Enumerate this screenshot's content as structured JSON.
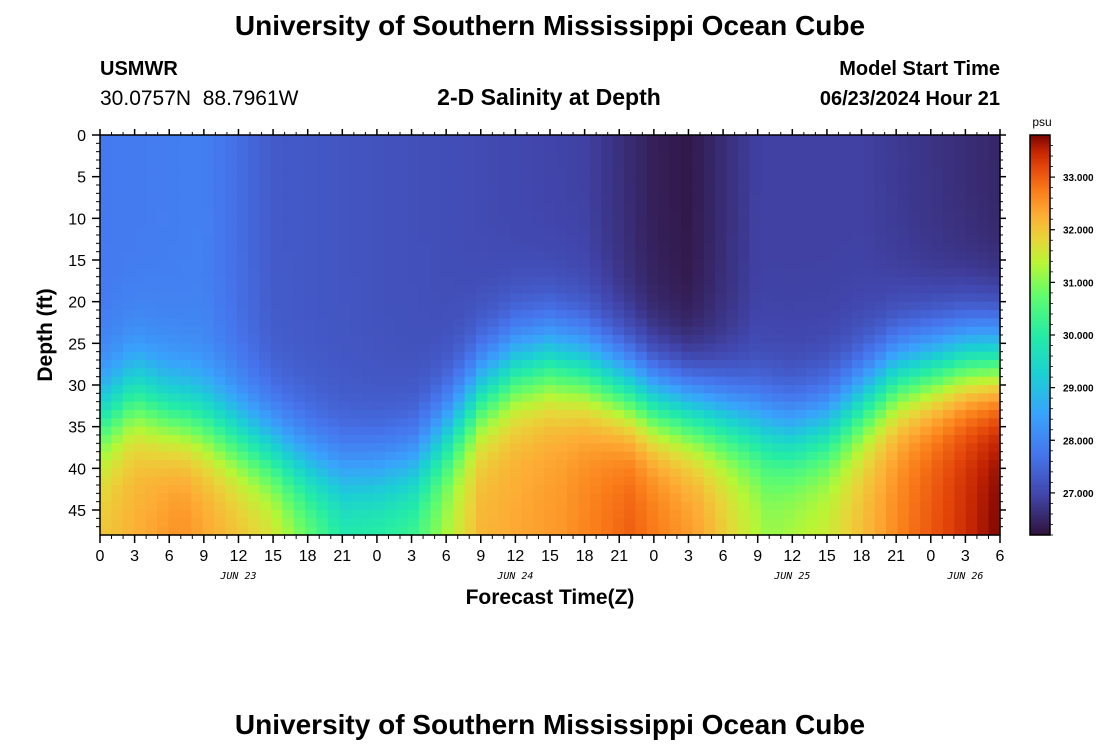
{
  "page": {
    "title": "University of Southern Mississippi Ocean Cube",
    "footer_title": "University of Southern Mississippi Ocean Cube",
    "station": "USMWR",
    "coords": "30.0757N  88.7961W",
    "subtitle": "2-D Salinity at Depth",
    "model_start_label": "Model Start Time",
    "model_start_value": "06/23/2024 Hour 21"
  },
  "chart_data": {
    "type": "heatmap",
    "title": "2-D Salinity at Depth",
    "xlabel": "Forecast Time(Z)",
    "ylabel": "Depth (ft)",
    "xlim": [
      0,
      78
    ],
    "ylim": [
      0,
      48
    ],
    "x_tick_values": [
      0,
      3,
      6,
      9,
      12,
      15,
      18,
      21,
      24,
      27,
      30,
      33,
      36,
      39,
      42,
      45,
      48,
      51,
      54,
      57,
      60,
      63,
      66,
      69,
      72,
      75,
      78
    ],
    "x_tick_labels": [
      "0",
      "3",
      "6",
      "9",
      "12",
      "15",
      "18",
      "21",
      "0",
      "3",
      "6",
      "9",
      "12",
      "15",
      "18",
      "21",
      "0",
      "3",
      "6",
      "9",
      "12",
      "15",
      "18",
      "21",
      "0",
      "3",
      "6"
    ],
    "date_labels": [
      {
        "hour": 12,
        "label": "JUN 23"
      },
      {
        "hour": 36,
        "label": "JUN 24"
      },
      {
        "hour": 60,
        "label": "JUN 25"
      },
      {
        "hour": 75,
        "label": "JUN 26"
      }
    ],
    "y_tick_values": [
      0,
      5,
      10,
      15,
      20,
      25,
      30,
      35,
      40,
      45
    ],
    "y_tick_labels": [
      "0",
      "5",
      "10",
      "15",
      "20",
      "25",
      "30",
      "35",
      "40",
      "45"
    ],
    "colorbar": {
      "unit": "psu",
      "min": 26.2,
      "max": 33.8,
      "ticks": [
        33.0,
        32.0,
        31.0,
        30.0,
        29.0,
        28.0,
        27.0
      ],
      "tick_labels": [
        "33.000",
        "32.000",
        "31.000",
        "30.000",
        "29.000",
        "28.000",
        "27.000"
      ]
    },
    "halocline_depth_ft": [
      {
        "hour": 0,
        "depth": 34
      },
      {
        "hour": 3,
        "depth": 31
      },
      {
        "hour": 6,
        "depth": 33
      },
      {
        "hour": 9,
        "depth": 34
      },
      {
        "hour": 12,
        "depth": 36
      },
      {
        "hour": 15,
        "depth": 38
      },
      {
        "hour": 18,
        "depth": 40
      },
      {
        "hour": 21,
        "depth": 41
      },
      {
        "hour": 24,
        "depth": 41
      },
      {
        "hour": 27,
        "depth": 40
      },
      {
        "hour": 30,
        "depth": 36
      },
      {
        "hour": 33,
        "depth": 31
      },
      {
        "hour": 36,
        "depth": 28
      },
      {
        "hour": 39,
        "depth": 27
      },
      {
        "hour": 42,
        "depth": 28
      },
      {
        "hour": 45,
        "depth": 30
      },
      {
        "hour": 48,
        "depth": 32
      },
      {
        "hour": 51,
        "depth": 33
      },
      {
        "hour": 54,
        "depth": 34
      },
      {
        "hour": 57,
        "depth": 35
      },
      {
        "hour": 60,
        "depth": 36
      },
      {
        "hour": 63,
        "depth": 35
      },
      {
        "hour": 66,
        "depth": 32
      },
      {
        "hour": 69,
        "depth": 29
      },
      {
        "hour": 72,
        "depth": 28
      },
      {
        "hour": 75,
        "depth": 27
      },
      {
        "hour": 78,
        "depth": 27
      }
    ],
    "surface_salinity_psu": [
      {
        "hour": 0,
        "psu": 27.8
      },
      {
        "hour": 9,
        "psu": 27.9
      },
      {
        "hour": 15,
        "psu": 27.3
      },
      {
        "hour": 30,
        "psu": 27.1
      },
      {
        "hour": 42,
        "psu": 26.9
      },
      {
        "hour": 48,
        "psu": 26.4
      },
      {
        "hour": 51,
        "psu": 26.3
      },
      {
        "hour": 57,
        "psu": 26.9
      },
      {
        "hour": 66,
        "psu": 26.9
      },
      {
        "hour": 72,
        "psu": 26.7
      },
      {
        "hour": 78,
        "psu": 26.5
      }
    ],
    "bottom_salinity_psu": [
      {
        "hour": 0,
        "psu": 32.0
      },
      {
        "hour": 7,
        "psu": 32.6
      },
      {
        "hour": 15,
        "psu": 31.8
      },
      {
        "hour": 21,
        "psu": 30.2
      },
      {
        "hour": 27,
        "psu": 30.5
      },
      {
        "hour": 33,
        "psu": 32.2
      },
      {
        "hour": 40,
        "psu": 32.5
      },
      {
        "hour": 46,
        "psu": 33.0
      },
      {
        "hour": 52,
        "psu": 32.4
      },
      {
        "hour": 58,
        "psu": 31.2
      },
      {
        "hour": 63,
        "psu": 31.6
      },
      {
        "hour": 70,
        "psu": 32.8
      },
      {
        "hour": 78,
        "psu": 33.8
      }
    ]
  }
}
